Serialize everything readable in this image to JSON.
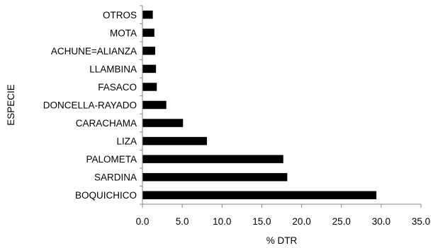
{
  "chart_data": {
    "type": "bar",
    "orientation": "horizontal",
    "categories": [
      "OTROS",
      "MOTA",
      "ACHUNE=ALIANZA",
      "LLAMBINA",
      "FASACO",
      "DONCELLA-RAYADO",
      "CARACHAMA",
      "LIZA",
      "PALOMETA",
      "SARDINA",
      "BOQUICHICO"
    ],
    "values": [
      1.3,
      1.5,
      1.6,
      1.7,
      1.8,
      3.0,
      5.1,
      8.1,
      17.7,
      18.2,
      29.4
    ],
    "xlabel": "% DTR",
    "ylabel": "ESPECIE",
    "xlim": [
      0,
      35
    ],
    "xticks": [
      "0.0",
      "5.0",
      "10.0",
      "15.0",
      "20.0",
      "25.0",
      "30.0",
      "35.0"
    ],
    "grid": false,
    "bar_color": "#000000"
  }
}
